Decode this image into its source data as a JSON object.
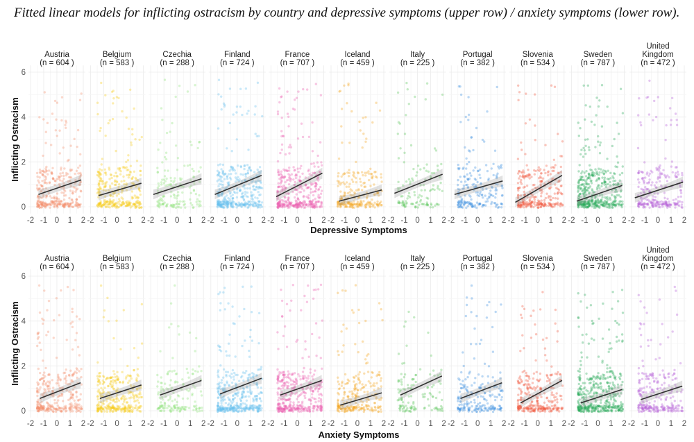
{
  "title": "Fitted linear models for inflicting ostracism by country and depressive symptoms (upper row) / anxiety symptoms (lower row).",
  "chart_data": [
    {
      "type": "scatter",
      "row": "upper",
      "title": "",
      "xlabel": "Depressive Symptoms",
      "ylabel": "Inflicting Ostracism",
      "xlim": [
        -2,
        2
      ],
      "ylim": [
        -0.3,
        6.3
      ],
      "xticks": [
        "-2",
        "-1",
        "0",
        "1",
        "2"
      ],
      "yticks": [
        "0",
        "2",
        "4",
        "6"
      ],
      "grid": true,
      "fit": "linear with confidence band",
      "panels": [
        {
          "country": [
            "Austria"
          ],
          "n_label": "(n = 604 )",
          "n": 604,
          "color": "#F4906E",
          "fit_line": {
            "x": [
              -1.4,
              1.85
            ],
            "y": [
              0.55,
              1.2
            ]
          }
        },
        {
          "country": [
            "Belgium"
          ],
          "n_label": "(n = 583 )",
          "n": 583,
          "color": "#F5CC1A",
          "fit_line": {
            "x": [
              -1.4,
              1.85
            ],
            "y": [
              0.5,
              1.05
            ]
          }
        },
        {
          "country": [
            "Czechia"
          ],
          "n_label": "(n = 288 )",
          "n": 288,
          "color": "#8EE37A",
          "fit_line": {
            "x": [
              -1.8,
              1.85
            ],
            "y": [
              0.55,
              1.25
            ]
          }
        },
        {
          "country": [
            "Finland"
          ],
          "n_label": "(n = 724 )",
          "n": 724,
          "color": "#66BFEE",
          "fit_line": {
            "x": [
              -1.7,
              1.85
            ],
            "y": [
              0.55,
              1.4
            ]
          }
        },
        {
          "country": [
            "France"
          ],
          "n_label": "(n = 707 )",
          "n": 707,
          "color": "#EC5FAE",
          "fit_line": {
            "x": [
              -1.6,
              1.9
            ],
            "y": [
              0.45,
              1.5
            ]
          }
        },
        {
          "country": [
            "Iceland"
          ],
          "n_label": "(n = 459 )",
          "n": 459,
          "color": "#F4A722",
          "fit_line": {
            "x": [
              -1.4,
              1.85
            ],
            "y": [
              0.25,
              0.75
            ]
          }
        },
        {
          "country": [
            "Italy"
          ],
          "n_label": "(n = 225 )",
          "n": 225,
          "color": "#5BC65B",
          "fit_line": {
            "x": [
              -1.75,
              1.9
            ],
            "y": [
              0.6,
              1.45
            ]
          }
        },
        {
          "country": [
            "Portugal"
          ],
          "n_label": "(n = 382 )",
          "n": 382,
          "color": "#3D8FE0",
          "fit_line": {
            "x": [
              -1.75,
              1.9
            ],
            "y": [
              0.55,
              1.15
            ]
          }
        },
        {
          "country": [
            "Slovenia"
          ],
          "n_label": "(n = 534 )",
          "n": 534,
          "color": "#F05A3E",
          "fit_line": {
            "x": [
              -1.7,
              1.85
            ],
            "y": [
              0.2,
              1.4
            ]
          }
        },
        {
          "country": [
            "Sweden"
          ],
          "n_label": "(n = 787 )",
          "n": 787,
          "color": "#27A85A",
          "fit_line": {
            "x": [
              -1.6,
              1.85
            ],
            "y": [
              0.25,
              0.95
            ]
          }
        },
        {
          "country": [
            "United",
            "Kingdom"
          ],
          "n_label": "(n = 472 )",
          "n": 472,
          "color": "#B45FD6",
          "fit_line": {
            "x": [
              -1.75,
              1.9
            ],
            "y": [
              0.4,
              1.1
            ]
          }
        }
      ]
    },
    {
      "type": "scatter",
      "row": "lower",
      "title": "",
      "xlabel": "Anxiety Symptoms",
      "ylabel": "Inflicting Ostracism",
      "xlim": [
        -2,
        2
      ],
      "ylim": [
        -0.3,
        6.3
      ],
      "xticks": [
        "-2",
        "-1",
        "0",
        "1",
        "2"
      ],
      "yticks": [
        "0",
        "2",
        "4",
        "6"
      ],
      "grid": true,
      "fit": "linear with confidence band",
      "panels": [
        {
          "country": [
            "Austria"
          ],
          "n_label": "(n = 604 )",
          "n": 604,
          "color": "#F4906E",
          "fit_line": {
            "x": [
              -1.3,
              1.8
            ],
            "y": [
              0.55,
              1.25
            ]
          }
        },
        {
          "country": [
            "Belgium"
          ],
          "n_label": "(n = 583 )",
          "n": 583,
          "color": "#F5CC1A",
          "fit_line": {
            "x": [
              -1.3,
              1.85
            ],
            "y": [
              0.55,
              1.15
            ]
          }
        },
        {
          "country": [
            "Czechia"
          ],
          "n_label": "(n = 288 )",
          "n": 288,
          "color": "#8EE37A",
          "fit_line": {
            "x": [
              -1.3,
              1.85
            ],
            "y": [
              0.7,
              1.35
            ]
          }
        },
        {
          "country": [
            "Finland"
          ],
          "n_label": "(n = 724 )",
          "n": 724,
          "color": "#66BFEE",
          "fit_line": {
            "x": [
              -1.3,
              1.85
            ],
            "y": [
              0.75,
              1.45
            ]
          }
        },
        {
          "country": [
            "France"
          ],
          "n_label": "(n = 707 )",
          "n": 707,
          "color": "#EC5FAE",
          "fit_line": {
            "x": [
              -1.3,
              1.85
            ],
            "y": [
              0.7,
              1.35
            ]
          }
        },
        {
          "country": [
            "Iceland"
          ],
          "n_label": "(n = 459 )",
          "n": 459,
          "color": "#F4A722",
          "fit_line": {
            "x": [
              -1.3,
              1.85
            ],
            "y": [
              0.25,
              0.8
            ]
          }
        },
        {
          "country": [
            "Italy"
          ],
          "n_label": "(n = 225 )",
          "n": 225,
          "color": "#5BC65B",
          "fit_line": {
            "x": [
              -1.3,
              1.85
            ],
            "y": [
              0.7,
              1.55
            ]
          }
        },
        {
          "country": [
            "Portugal"
          ],
          "n_label": "(n = 382 )",
          "n": 382,
          "color": "#3D8FE0",
          "fit_line": {
            "x": [
              -1.3,
              1.85
            ],
            "y": [
              0.55,
              1.25
            ]
          }
        },
        {
          "country": [
            "Slovenia"
          ],
          "n_label": "(n = 534 )",
          "n": 534,
          "color": "#F05A3E",
          "fit_line": {
            "x": [
              -1.3,
              1.85
            ],
            "y": [
              0.35,
              1.35
            ]
          }
        },
        {
          "country": [
            "Sweden"
          ],
          "n_label": "(n = 787 )",
          "n": 787,
          "color": "#27A85A",
          "fit_line": {
            "x": [
              -1.3,
              1.85
            ],
            "y": [
              0.35,
              0.95
            ]
          }
        },
        {
          "country": [
            "United",
            "Kingdom"
          ],
          "n_label": "(n = 472 )",
          "n": 472,
          "color": "#B45FD6",
          "fit_line": {
            "x": [
              -1.3,
              1.85
            ],
            "y": [
              0.5,
              1.1
            ]
          }
        }
      ]
    }
  ]
}
